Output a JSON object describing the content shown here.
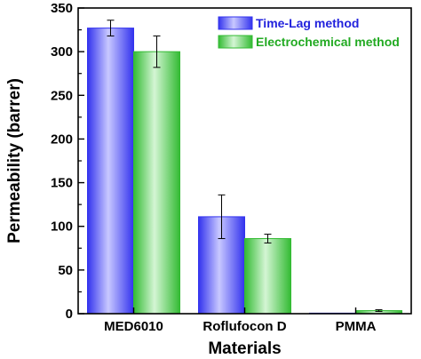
{
  "chart_data": {
    "type": "bar",
    "title": "",
    "xlabel": "Materials",
    "ylabel": "Permeability (barrer)",
    "ylim": [
      0,
      350
    ],
    "yticks": [
      0,
      50,
      100,
      150,
      200,
      250,
      300,
      350
    ],
    "categories": [
      "MED6010",
      "Roflufocon D",
      "PMMA"
    ],
    "series": [
      {
        "name": "Time-Lag method",
        "values": [
          327,
          111,
          0.5
        ],
        "errors": [
          9,
          25,
          0
        ],
        "color": "#3333ee",
        "light_color": "#c8c8ff",
        "text_color": "#2222dd"
      },
      {
        "name": "Electrochemical method",
        "values": [
          300,
          86,
          3.5
        ],
        "errors": [
          18,
          5,
          1
        ],
        "color": "#33bb33",
        "light_color": "#d4f5d4",
        "text_color": "#22aa22"
      }
    ],
    "legend_position": "top-right",
    "grid": false
  }
}
